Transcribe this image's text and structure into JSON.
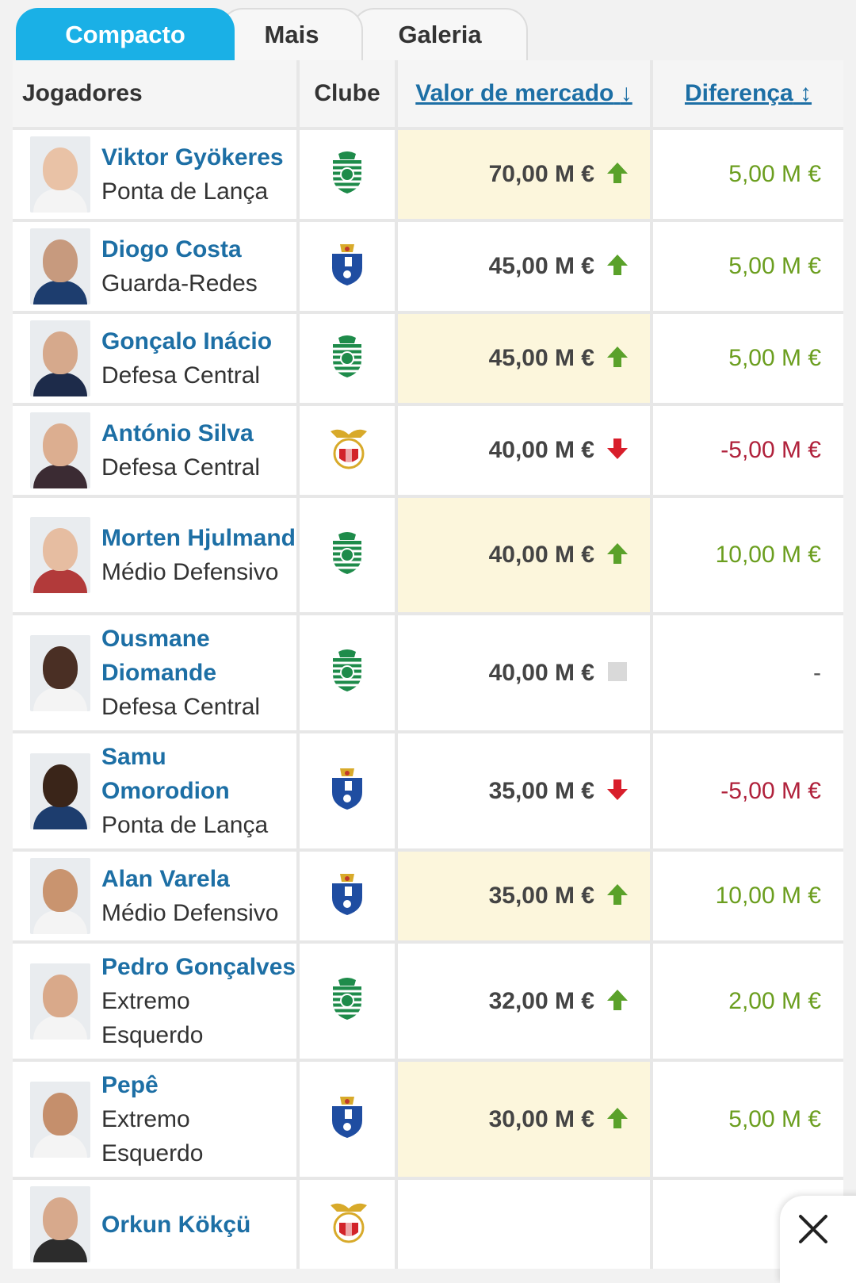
{
  "tabs": [
    {
      "label": "Compacto",
      "active": true
    },
    {
      "label": "Mais",
      "active": false
    },
    {
      "label": "Galeria",
      "active": false
    }
  ],
  "columns": {
    "players": "Jogadores",
    "club": "Clube",
    "market_value": "Valor de mercado",
    "market_value_sort": "↓",
    "difference": "Diferença",
    "difference_sort": "↕"
  },
  "colors": {
    "tab_active": "#1ab0e6",
    "link": "#1d6fa5",
    "up": "#6b9e1f",
    "arrow_up": "#5aa12a",
    "down": "#b0213b",
    "arrow_down": "#d81e2b",
    "highlight": "#fcf6dc"
  },
  "rows": [
    {
      "name": "Viktor Gyökeres",
      "position": "Ponta de Lança",
      "club_icon": "sporting-crest",
      "value": "70,00 M €",
      "trend": "up",
      "difference": "5,00 M €",
      "highlight": true
    },
    {
      "name": "Diogo Costa",
      "position": "Guarda-Redes",
      "club_icon": "porto-crest",
      "value": "45,00 M €",
      "trend": "up",
      "difference": "5,00 M €",
      "highlight": false
    },
    {
      "name": "Gonçalo Inácio",
      "position": "Defesa Central",
      "club_icon": "sporting-crest",
      "value": "45,00 M €",
      "trend": "up",
      "difference": "5,00 M €",
      "highlight": true
    },
    {
      "name": "António Silva",
      "position": "Defesa Central",
      "club_icon": "benfica-crest",
      "value": "40,00 M €",
      "trend": "down",
      "difference": "-5,00 M €",
      "highlight": false
    },
    {
      "name": "Morten Hjulmand",
      "position": "Médio Defensivo",
      "club_icon": "sporting-crest",
      "value": "40,00 M €",
      "trend": "up",
      "difference": "10,00 M €",
      "highlight": true
    },
    {
      "name": "Ousmane Diomande",
      "position": "Defesa Central",
      "club_icon": "sporting-crest",
      "value": "40,00 M €",
      "trend": "none",
      "difference": "-",
      "highlight": false
    },
    {
      "name": "Samu Omorodion",
      "position": "Ponta de Lança",
      "club_icon": "porto-crest",
      "value": "35,00 M €",
      "trend": "down",
      "difference": "-5,00 M €",
      "highlight": false
    },
    {
      "name": "Alan Varela",
      "position": "Médio Defensivo",
      "club_icon": "porto-crest",
      "value": "35,00 M €",
      "trend": "up",
      "difference": "10,00 M €",
      "highlight": true
    },
    {
      "name": "Pedro Gonçalves",
      "position": "Extremo Esquerdo",
      "club_icon": "sporting-crest",
      "value": "32,00 M €",
      "trend": "up",
      "difference": "2,00 M €",
      "highlight": false
    },
    {
      "name": "Pepê",
      "position": "Extremo Esquerdo",
      "club_icon": "porto-crest",
      "value": "30,00 M €",
      "trend": "up",
      "difference": "5,00 M €",
      "highlight": true
    },
    {
      "name": "Orkun Kökçü",
      "position": "",
      "club_icon": "benfica-crest",
      "value": "",
      "trend": "",
      "difference": "",
      "highlight": false
    }
  ],
  "close_icon": "close-icon"
}
